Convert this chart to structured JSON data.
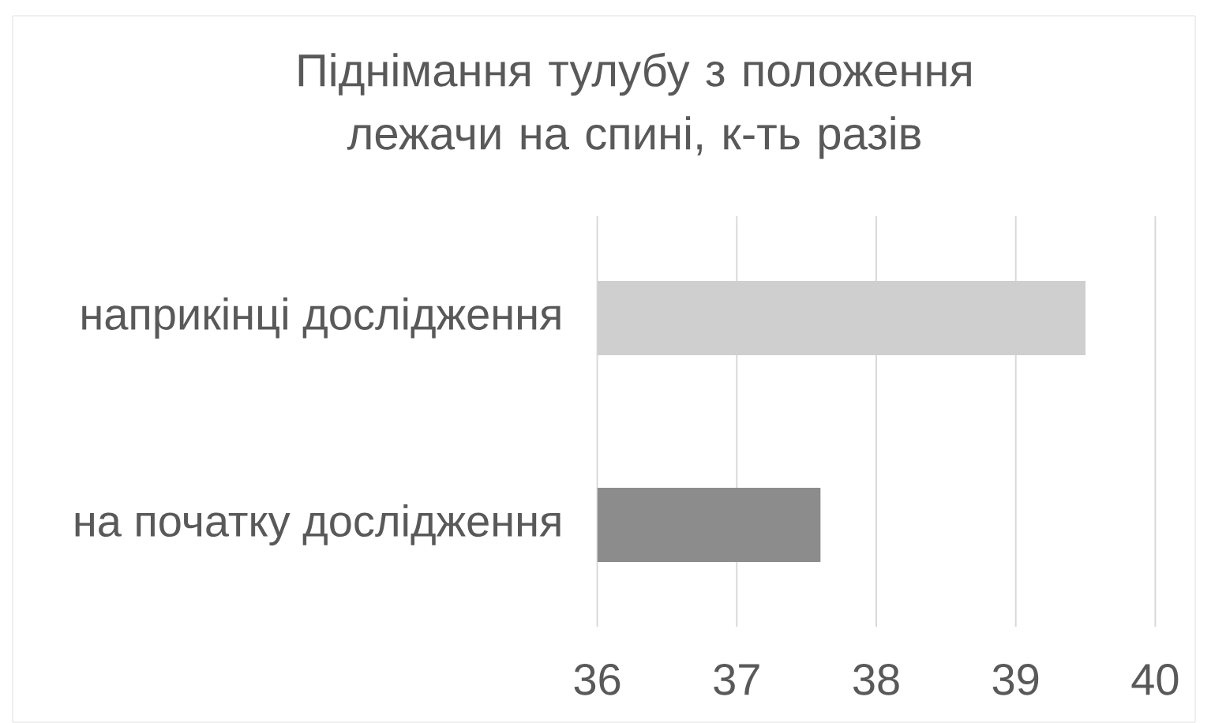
{
  "chart_data": {
    "type": "bar",
    "orientation": "horizontal",
    "title": "Піднімання тулубу з положення лежачи на спині, к-ть разів",
    "categories": [
      "наприкінці дослідження",
      "на початку дослідження"
    ],
    "values": [
      39.5,
      37.6
    ],
    "colors": [
      "#cfcfcf",
      "#8c8c8c"
    ],
    "xlim": [
      36,
      40
    ],
    "xticks": [
      36,
      37,
      38,
      39,
      40
    ],
    "grid": "x"
  }
}
